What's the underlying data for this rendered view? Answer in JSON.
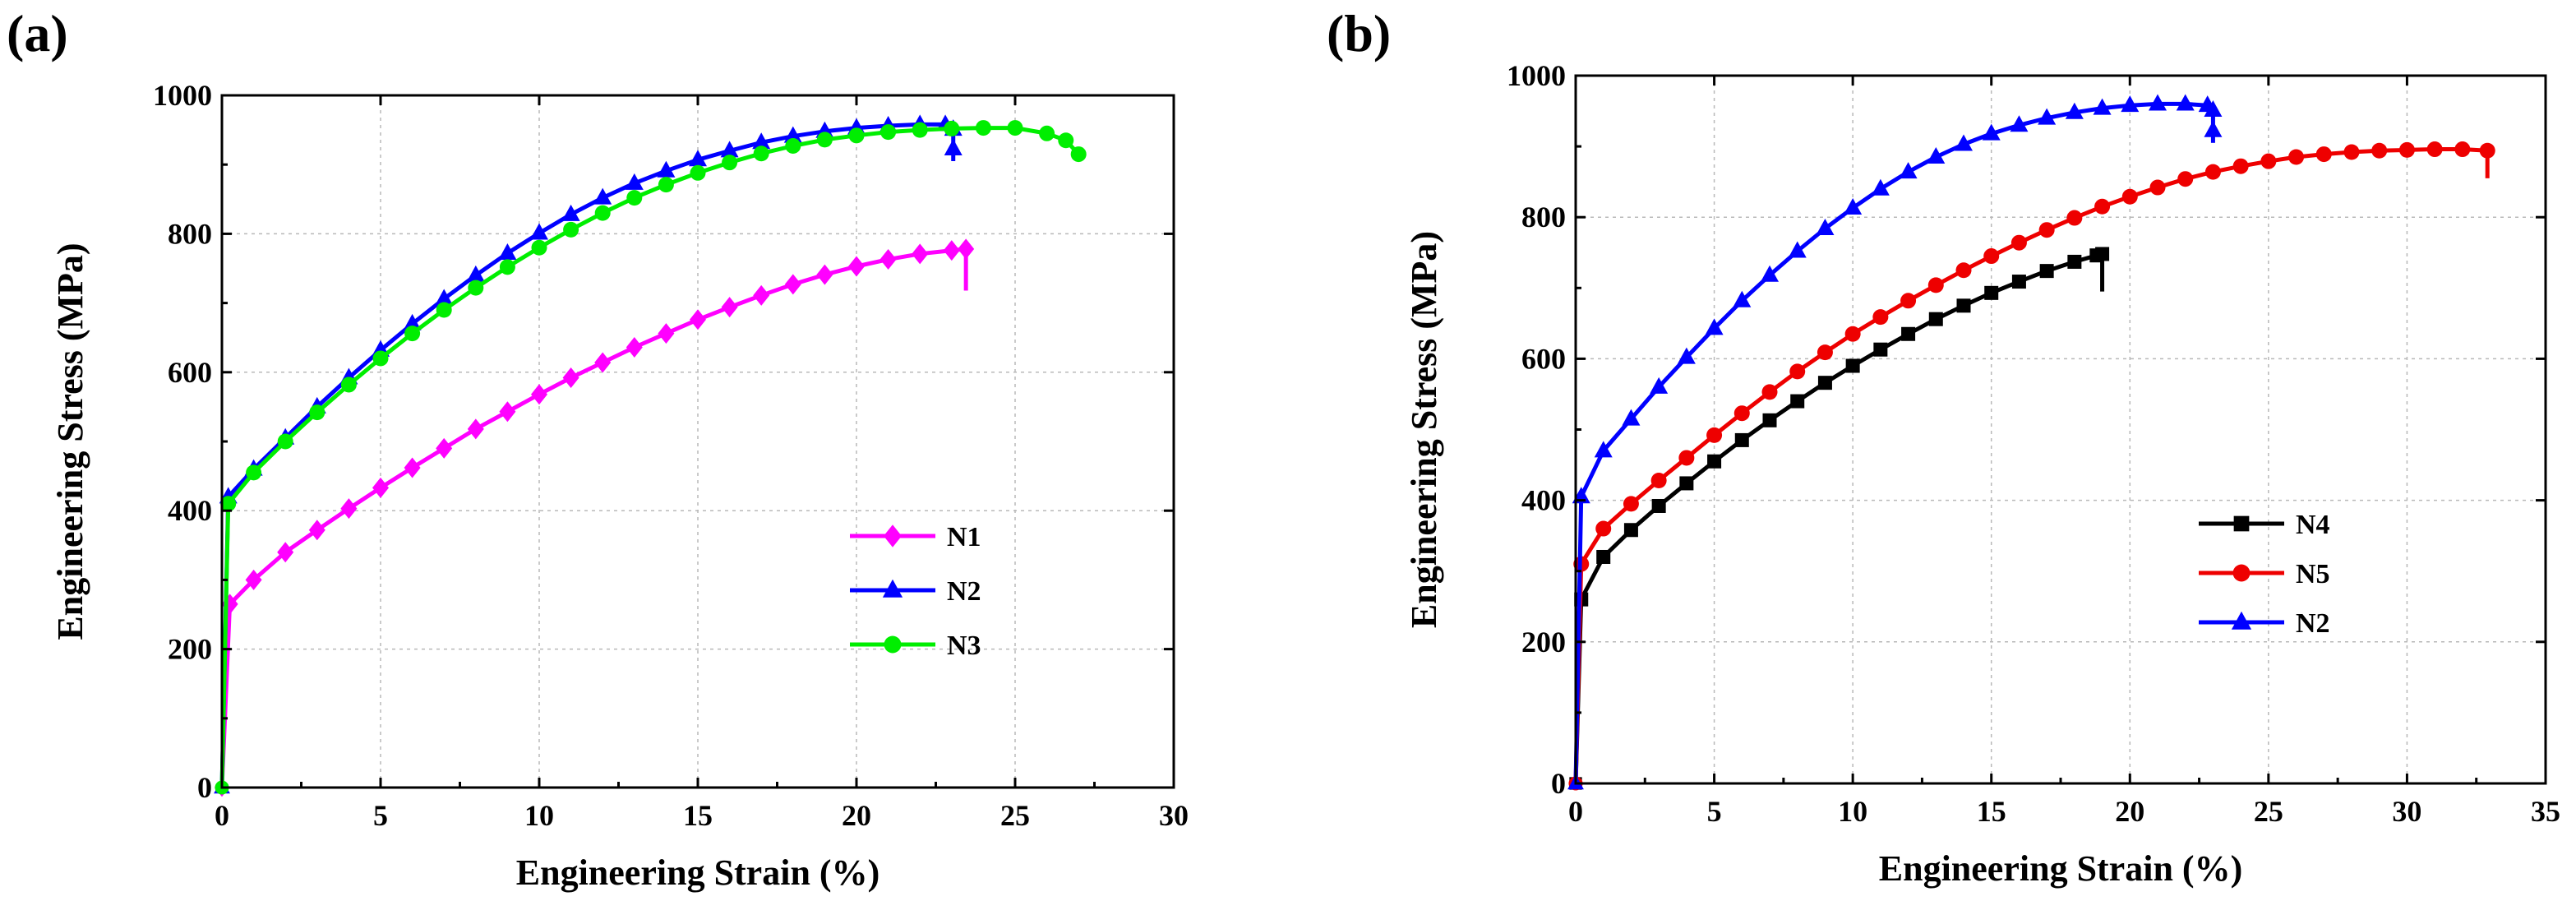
{
  "figure_labels": [
    "(a)",
    "(b)"
  ],
  "chart_data": [
    {
      "type": "line",
      "panel_label": "(a)",
      "title": "",
      "xlabel": "Engineering Strain (%)",
      "ylabel": "Engineering Stress (MPa)",
      "xlim": [
        0,
        30
      ],
      "ylim": [
        0,
        1000
      ],
      "xticks": [
        0,
        5,
        10,
        15,
        20,
        25,
        30
      ],
      "yticks": [
        0,
        200,
        400,
        600,
        800,
        1000
      ],
      "grid": true,
      "legend_position": "center-right",
      "series": [
        {
          "name": "N1",
          "color": "#ff00ff",
          "marker": "diamond",
          "elastic": [
            [
              0,
              0
            ],
            [
              0.25,
              265
            ]
          ],
          "points": [
            [
              0.25,
              265
            ],
            [
              1,
              300
            ],
            [
              2,
              340
            ],
            [
              3,
              372
            ],
            [
              4,
              403
            ],
            [
              5,
              433
            ],
            [
              6,
              462
            ],
            [
              7,
              490
            ],
            [
              8,
              518
            ],
            [
              9,
              543
            ],
            [
              10,
              568
            ],
            [
              11,
              592
            ],
            [
              12,
              614
            ],
            [
              13,
              636
            ],
            [
              14,
              656
            ],
            [
              15,
              676
            ],
            [
              16,
              694
            ],
            [
              17,
              711
            ],
            [
              18,
              727
            ],
            [
              19,
              741
            ],
            [
              20,
              753
            ],
            [
              21,
              763
            ],
            [
              22,
              771
            ],
            [
              23,
              776
            ],
            [
              23.45,
              778
            ]
          ],
          "fracture": [
            [
              23.45,
              778
            ],
            [
              23.45,
              718
            ]
          ],
          "end_marker": "diamond"
        },
        {
          "name": "N2",
          "color": "#0000ff",
          "marker": "triangle",
          "elastic": [
            [
              0,
              0
            ],
            [
              0.2,
              420
            ]
          ],
          "points": [
            [
              0.2,
              420
            ],
            [
              1,
              460
            ],
            [
              2,
              505
            ],
            [
              3,
              550
            ],
            [
              4,
              592
            ],
            [
              5,
              632
            ],
            [
              6,
              670
            ],
            [
              7,
              706
            ],
            [
              8,
              740
            ],
            [
              9,
              772
            ],
            [
              10,
              801
            ],
            [
              11,
              828
            ],
            [
              12,
              852
            ],
            [
              13,
              873
            ],
            [
              14,
              891
            ],
            [
              15,
              907
            ],
            [
              16,
              920
            ],
            [
              17,
              932
            ],
            [
              18,
              941
            ],
            [
              19,
              948
            ],
            [
              20,
              953
            ],
            [
              21,
              956
            ],
            [
              22,
              958
            ],
            [
              22.8,
              958
            ],
            [
              23.05,
              950
            ]
          ],
          "fracture": [
            [
              23.05,
              950
            ],
            [
              23.05,
              905
            ]
          ],
          "end_marker": "arrow-up"
        },
        {
          "name": "N3",
          "color": "#00ee00",
          "marker": "circle",
          "elastic": [
            [
              0,
              0
            ],
            [
              0.2,
              410
            ]
          ],
          "points": [
            [
              0.2,
              410
            ],
            [
              1,
              455
            ],
            [
              2,
              500
            ],
            [
              3,
              542
            ],
            [
              4,
              582
            ],
            [
              5,
              620
            ],
            [
              6,
              656
            ],
            [
              7,
              690
            ],
            [
              8,
              722
            ],
            [
              9,
              752
            ],
            [
              10,
              780
            ],
            [
              11,
              806
            ],
            [
              12,
              830
            ],
            [
              13,
              852
            ],
            [
              14,
              871
            ],
            [
              15,
              888
            ],
            [
              16,
              903
            ],
            [
              17,
              916
            ],
            [
              18,
              927
            ],
            [
              19,
              936
            ],
            [
              20,
              942
            ],
            [
              21,
              947
            ],
            [
              22,
              950
            ],
            [
              23,
              952
            ],
            [
              24,
              953
            ],
            [
              25,
              953
            ],
            [
              26,
              945
            ],
            [
              26.6,
              935
            ],
            [
              27,
              915
            ]
          ],
          "fracture": [],
          "end_marker": "circle"
        }
      ]
    },
    {
      "type": "line",
      "panel_label": "(b)",
      "title": "",
      "xlabel": "Engineering Strain (%)",
      "ylabel": "Engineering Stress (MPa)",
      "xlim": [
        0,
        35
      ],
      "ylim": [
        0,
        1000
      ],
      "xticks": [
        0,
        5,
        10,
        15,
        20,
        25,
        30,
        35
      ],
      "yticks": [
        0,
        200,
        400,
        600,
        800,
        1000
      ],
      "grid": true,
      "legend_position": "center-right",
      "series": [
        {
          "name": "N4",
          "color": "#000000",
          "marker": "square",
          "elastic": [
            [
              0,
              0
            ],
            [
              0.2,
              260
            ]
          ],
          "points": [
            [
              0.2,
              260
            ],
            [
              1,
              320
            ],
            [
              2,
              358
            ],
            [
              3,
              392
            ],
            [
              4,
              424
            ],
            [
              5,
              455
            ],
            [
              6,
              485
            ],
            [
              7,
              513
            ],
            [
              8,
              540
            ],
            [
              9,
              566
            ],
            [
              10,
              590
            ],
            [
              11,
              613
            ],
            [
              12,
              635
            ],
            [
              13,
              656
            ],
            [
              14,
              675
            ],
            [
              15,
              693
            ],
            [
              16,
              709
            ],
            [
              17,
              724
            ],
            [
              18,
              737
            ],
            [
              18.8,
              746
            ],
            [
              19,
              748
            ]
          ],
          "fracture": [
            [
              19,
              748
            ],
            [
              19,
              695
            ]
          ],
          "end_marker": "square"
        },
        {
          "name": "N5",
          "color": "#ee0000",
          "marker": "circle",
          "elastic": [
            [
              0,
              0
            ],
            [
              0.2,
              310
            ]
          ],
          "points": [
            [
              0.2,
              310
            ],
            [
              1,
              360
            ],
            [
              2,
              395
            ],
            [
              3,
              428
            ],
            [
              4,
              460
            ],
            [
              5,
              492
            ],
            [
              6,
              523
            ],
            [
              7,
              553
            ],
            [
              8,
              582
            ],
            [
              9,
              609
            ],
            [
              10,
              635
            ],
            [
              11,
              659
            ],
            [
              12,
              682
            ],
            [
              13,
              704
            ],
            [
              14,
              725
            ],
            [
              15,
              745
            ],
            [
              16,
              764
            ],
            [
              17,
              782
            ],
            [
              18,
              799
            ],
            [
              19,
              815
            ],
            [
              20,
              829
            ],
            [
              21,
              842
            ],
            [
              22,
              854
            ],
            [
              23,
              864
            ],
            [
              24,
              872
            ],
            [
              25,
              879
            ],
            [
              26,
              885
            ],
            [
              27,
              889
            ],
            [
              28,
              892
            ],
            [
              29,
              894
            ],
            [
              30,
              895
            ],
            [
              31,
              896
            ],
            [
              32,
              896
            ],
            [
              32.9,
              894
            ]
          ],
          "fracture": [
            [
              32.9,
              894
            ],
            [
              32.9,
              855
            ]
          ],
          "end_marker": "circle"
        },
        {
          "name": "N2",
          "color": "#0000ff",
          "marker": "triangle",
          "elastic": [
            [
              0,
              0
            ],
            [
              0.2,
              405
            ]
          ],
          "points": [
            [
              0.2,
              405
            ],
            [
              1,
              470
            ],
            [
              2,
              515
            ],
            [
              3,
              560
            ],
            [
              4,
              602
            ],
            [
              5,
              643
            ],
            [
              6,
              682
            ],
            [
              7,
              718
            ],
            [
              8,
              752
            ],
            [
              9,
              784
            ],
            [
              10,
              813
            ],
            [
              11,
              840
            ],
            [
              12,
              864
            ],
            [
              13,
              885
            ],
            [
              14,
              903
            ],
            [
              15,
              918
            ],
            [
              16,
              930
            ],
            [
              17,
              940
            ],
            [
              18,
              948
            ],
            [
              19,
              954
            ],
            [
              20,
              958
            ],
            [
              21,
              960
            ],
            [
              22,
              960
            ],
            [
              22.8,
              958
            ],
            [
              23,
              950
            ]
          ],
          "fracture": [
            [
              23,
              950
            ],
            [
              23,
              905
            ]
          ],
          "end_marker": "arrow-up"
        }
      ]
    }
  ]
}
